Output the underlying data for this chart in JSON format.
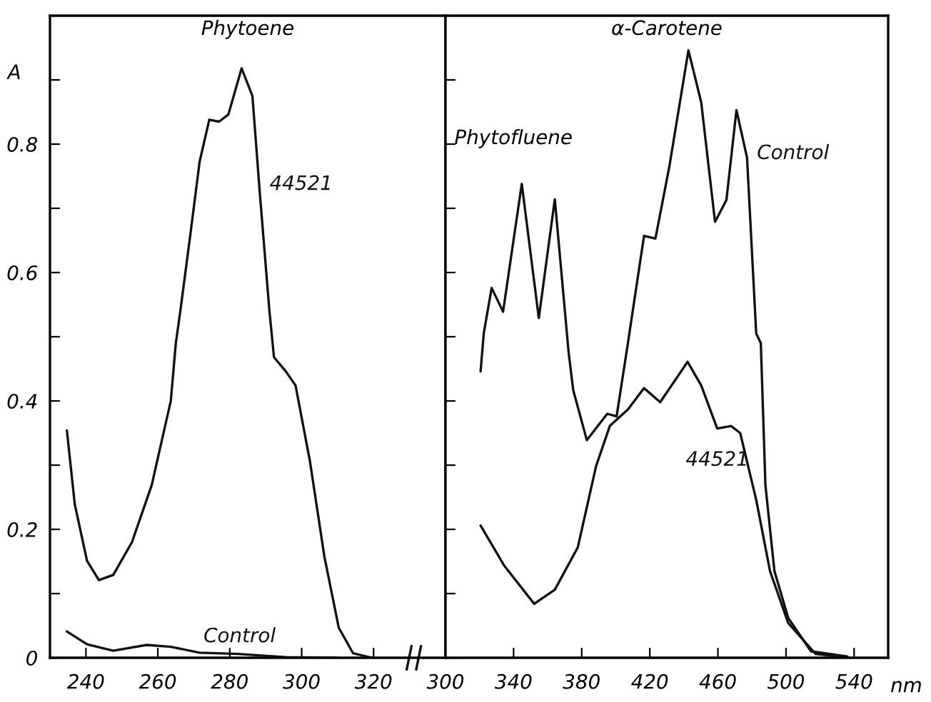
{
  "chart_data": [
    {
      "type": "line",
      "title": "Phytoene",
      "ylabel": "A",
      "xlim": [
        230,
        340
      ],
      "xticks": [
        240,
        260,
        280,
        300,
        320
      ],
      "ylim": [
        0,
        1.0
      ],
      "yticks": [
        0,
        {
          "value": 0.1,
          "label": null
        },
        0.2,
        {
          "value": 0.3,
          "label": null
        },
        0.4,
        {
          "value": 0.5,
          "label": null
        },
        0.6,
        {
          "value": 0.7,
          "label": null
        },
        0.8,
        {
          "value": 0.9,
          "label": null
        }
      ],
      "grid": false,
      "legend": false,
      "marker": "none",
      "line_style": "solid",
      "series": [
        {
          "name": "44521",
          "color": "#111111",
          "x": [
            234.7,
            236.9,
            240.3,
            243.6,
            247.6,
            252.8,
            258.3,
            263.6,
            265,
            266.3,
            268.9,
            271.6,
            274.3,
            277,
            279.6,
            283.3,
            286.3,
            288.3,
            291,
            292.3,
            295.6,
            298.3,
            302.3,
            306.3,
            310.3,
            314.3,
            319.6
          ],
          "values": [
            0.354,
            0.239,
            0.151,
            0.121,
            0.129,
            0.18,
            0.269,
            0.4,
            0.49,
            0.542,
            0.653,
            0.772,
            0.838,
            0.835,
            0.846,
            0.918,
            0.875,
            0.728,
            0.542,
            0.468,
            0.446,
            0.424,
            0.306,
            0.158,
            0.047,
            0.007,
            0.0
          ]
        },
        {
          "name": "Control",
          "color": "#111111",
          "x": [
            234.7,
            240.3,
            247.6,
            256.9,
            263.6,
            271.6,
            282.3,
            295.6,
            310
          ],
          "values": [
            0.041,
            0.021,
            0.011,
            0.02,
            0.017,
            0.008,
            0.006,
            0.001,
            0.0
          ]
        }
      ]
    },
    {
      "type": "line",
      "title": "α-Carotene",
      "xlabel": "nm",
      "tick_labels": "x",
      "annotations": [
        "Phytofluene"
      ],
      "xlim": [
        300,
        560
      ],
      "xticks": [
        300,
        340,
        380,
        420,
        460,
        500,
        540
      ],
      "ylim": [
        0,
        1.0
      ],
      "yticks": [
        0,
        {
          "value": 0.1,
          "label": null
        },
        0.2,
        {
          "value": 0.3,
          "label": null
        },
        0.4,
        {
          "value": 0.5,
          "label": null
        },
        0.6,
        {
          "value": 0.7,
          "label": null
        },
        0.8,
        {
          "value": 0.9,
          "label": null
        }
      ],
      "grid": false,
      "legend": false,
      "marker": "none",
      "line_style": "solid",
      "series": [
        {
          "name": "Control",
          "color": "#111111",
          "x": [
            320.6,
            322.5,
            327.1,
            333.8,
            344.8,
            354.8,
            364.2,
            372.3,
            375,
            383,
            395,
            400.5,
            407.2,
            416.6,
            423.3,
            431.4,
            442.7,
            450.2,
            458.3,
            465,
            470.9,
            477.1,
            482.5,
            485.2,
            487.9,
            493.2,
            501.3,
            514.7,
            536
          ],
          "values": [
            0.446,
            0.506,
            0.576,
            0.539,
            0.738,
            0.529,
            0.714,
            0.476,
            0.417,
            0.339,
            0.38,
            0.376,
            0.491,
            0.657,
            0.653,
            0.764,
            0.946,
            0.865,
            0.679,
            0.713,
            0.853,
            0.779,
            0.505,
            0.49,
            0.269,
            0.135,
            0.062,
            0.01,
            0.002
          ]
        },
        {
          "name": "44521",
          "color": "#111111",
          "x": [
            320.6,
            334.6,
            352.1,
            364.2,
            377.7,
            388.4,
            396.5,
            407.2,
            416.6,
            426.1,
            442.2,
            450.2,
            459.6,
            467.7,
            473.1,
            482.5,
            490.6,
            501.3,
            517.4,
            537
          ],
          "values": [
            0.206,
            0.143,
            0.084,
            0.106,
            0.172,
            0.298,
            0.361,
            0.387,
            0.42,
            0.398,
            0.461,
            0.424,
            0.357,
            0.361,
            0.35,
            0.246,
            0.135,
            0.054,
            0.006,
            0.0
          ]
        }
      ]
    }
  ]
}
